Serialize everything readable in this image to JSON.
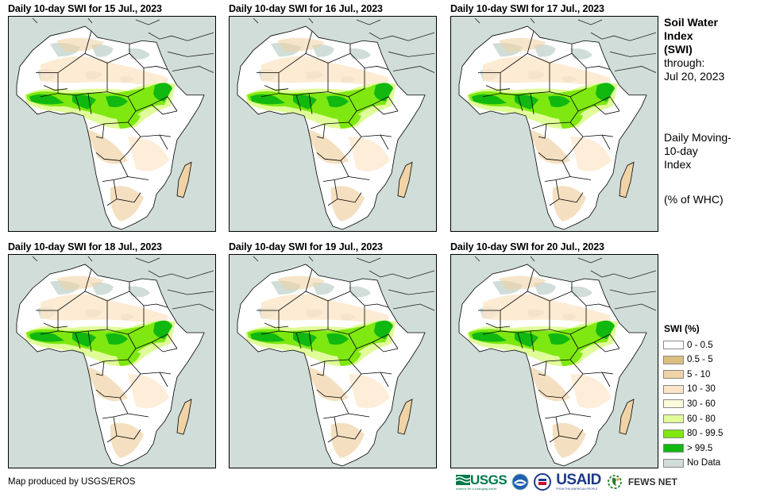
{
  "panels": [
    {
      "title": "Daily 10-day  SWI for 15 Jul., 2023"
    },
    {
      "title": "Daily 10-day  SWI for 16 Jul., 2023"
    },
    {
      "title": "Daily 10-day  SWI for 17 Jul., 2023"
    },
    {
      "title": "Daily 10-day  SWI for 18 Jul., 2023"
    },
    {
      "title": "Daily 10-day  SWI for 19 Jul., 2023"
    },
    {
      "title": "Daily 10-day  SWI for 20 Jul., 2023"
    }
  ],
  "sidebar": {
    "title_lines": [
      "Soil Water",
      "Index",
      "(SWI)"
    ],
    "through_label": "through:",
    "through_date": "Jul 20, 2023",
    "description_lines": [
      "Daily Moving-",
      "10-day",
      "Index"
    ],
    "units": "(% of WHC)"
  },
  "legend": {
    "title": "SWI (%)",
    "items": [
      {
        "label": "0 - 0.5",
        "color": "#ffffff"
      },
      {
        "label": "0.5 - 5",
        "color": "#dbbf82"
      },
      {
        "label": "5 - 10",
        "color": "#f0d3a6"
      },
      {
        "label": "10 - 30",
        "color": "#fde6c8"
      },
      {
        "label": "30 - 60",
        "color": "#fcfddc"
      },
      {
        "label": "60 - 80",
        "color": "#e0fc99"
      },
      {
        "label": "80 - 99.5",
        "color": "#7ee810"
      },
      {
        "label": "> 99.5",
        "color": "#10b810"
      },
      {
        "label": "No Data",
        "color": "#d0ddd8"
      }
    ]
  },
  "credit": "Map produced by USGS/EROS",
  "logos": {
    "usgs": "USGS",
    "usgs_tagline": "science for a changing world",
    "noaa": "NOAA",
    "usaid": "USAID",
    "usaid_tagline": "FROM THE AMERICAN PEOPLE",
    "fews": "FEWS NET"
  }
}
